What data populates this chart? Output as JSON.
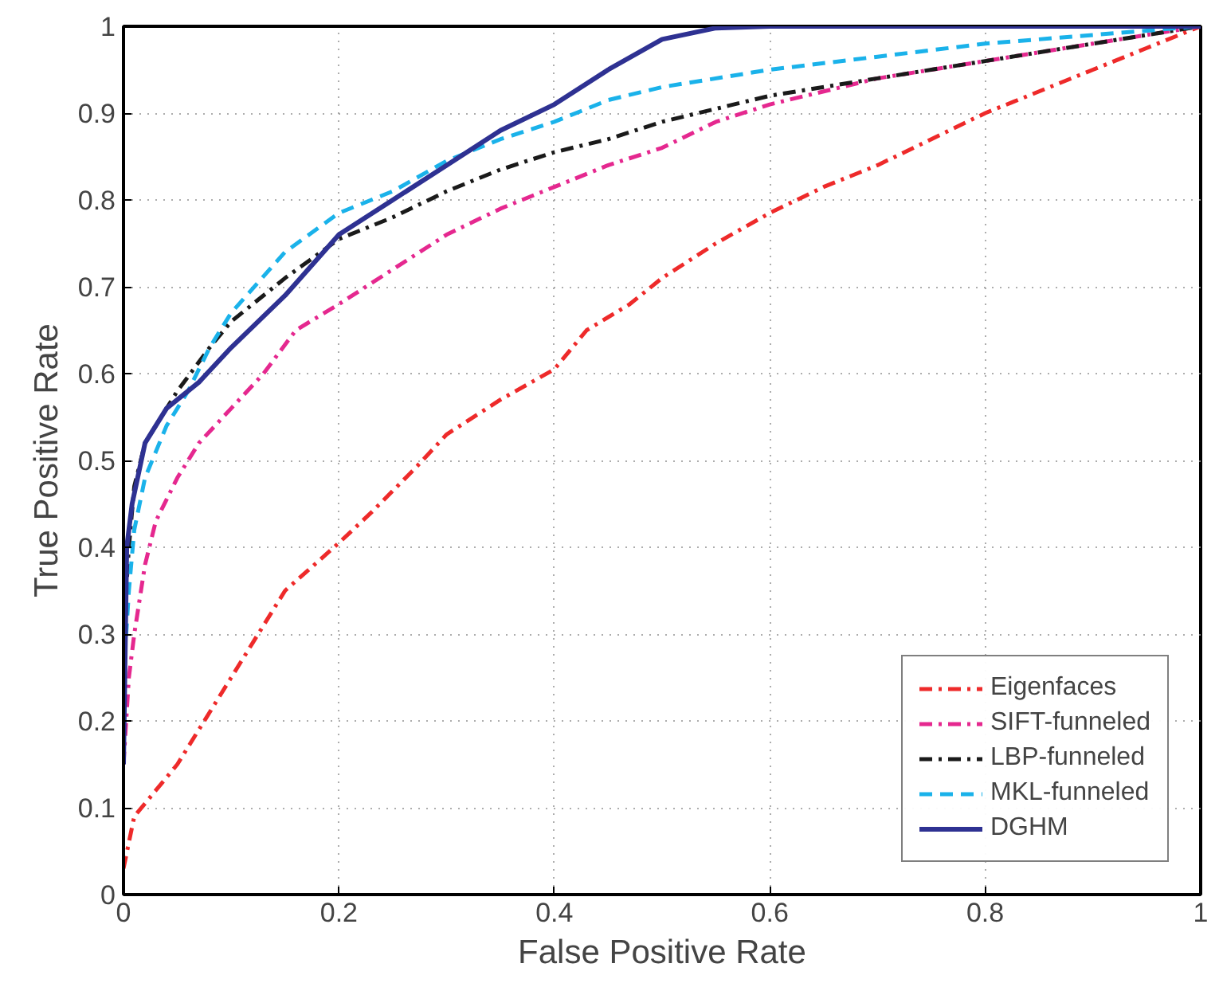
{
  "chart_data": {
    "type": "line",
    "xlabel": "False Positive Rate",
    "ylabel": "True Positive Rate",
    "xlim": [
      0,
      1
    ],
    "ylim": [
      0,
      1
    ],
    "xticks": [
      0,
      0.2,
      0.4,
      0.6,
      0.8,
      1
    ],
    "yticks": [
      0,
      0.1,
      0.2,
      0.3,
      0.4,
      0.5,
      0.6,
      0.7,
      0.8,
      0.9,
      1
    ],
    "grid": true,
    "legend": "bottom right",
    "marker": "none",
    "series": [
      {
        "name": "Eigenfaces",
        "color": "#ee2a2a",
        "line_style": "dashdot",
        "x": [
          0,
          0.005,
          0.01,
          0.03,
          0.05,
          0.07,
          0.1,
          0.12,
          0.15,
          0.2,
          0.23,
          0.27,
          0.3,
          0.35,
          0.4,
          0.43,
          0.47,
          0.5,
          0.55,
          0.6,
          0.65,
          0.7,
          0.75,
          0.8,
          0.85,
          0.9,
          0.95,
          1
        ],
        "values": [
          0.03,
          0.06,
          0.09,
          0.12,
          0.15,
          0.19,
          0.25,
          0.29,
          0.35,
          0.405,
          0.44,
          0.49,
          0.53,
          0.57,
          0.605,
          0.65,
          0.68,
          0.71,
          0.75,
          0.785,
          0.815,
          0.84,
          0.87,
          0.9,
          0.925,
          0.95,
          0.975,
          1
        ]
      },
      {
        "name": "SIFT-funneled",
        "color": "#e5288f",
        "line_style": "dashdot",
        "x": [
          0,
          0.005,
          0.01,
          0.02,
          0.03,
          0.05,
          0.07,
          0.1,
          0.13,
          0.16,
          0.2,
          0.25,
          0.3,
          0.35,
          0.4,
          0.45,
          0.5,
          0.55,
          0.6,
          0.7,
          0.8,
          0.9,
          1
        ],
        "values": [
          0.15,
          0.25,
          0.3,
          0.38,
          0.43,
          0.48,
          0.52,
          0.56,
          0.6,
          0.65,
          0.68,
          0.72,
          0.76,
          0.79,
          0.815,
          0.84,
          0.86,
          0.89,
          0.91,
          0.94,
          0.96,
          0.98,
          1
        ]
      },
      {
        "name": "LBP-funneled",
        "color": "#1a1a1a",
        "line_style": "dashdot",
        "x": [
          0,
          0.005,
          0.01,
          0.02,
          0.05,
          0.08,
          0.1,
          0.15,
          0.2,
          0.25,
          0.3,
          0.35,
          0.4,
          0.45,
          0.5,
          0.6,
          0.7,
          0.8,
          0.9,
          1
        ],
        "values": [
          0.3,
          0.4,
          0.47,
          0.52,
          0.58,
          0.63,
          0.66,
          0.71,
          0.755,
          0.78,
          0.81,
          0.835,
          0.855,
          0.87,
          0.89,
          0.92,
          0.94,
          0.96,
          0.98,
          1
        ]
      },
      {
        "name": "MKL-funneled",
        "color": "#1ab2ea",
        "line_style": "dashed",
        "x": [
          0,
          0.005,
          0.01,
          0.02,
          0.04,
          0.06,
          0.08,
          0.1,
          0.15,
          0.2,
          0.25,
          0.3,
          0.35,
          0.4,
          0.45,
          0.5,
          0.6,
          0.7,
          0.8,
          0.9,
          1
        ],
        "values": [
          0.25,
          0.35,
          0.42,
          0.48,
          0.54,
          0.58,
          0.63,
          0.67,
          0.74,
          0.785,
          0.81,
          0.845,
          0.87,
          0.89,
          0.915,
          0.93,
          0.95,
          0.965,
          0.98,
          0.99,
          1
        ]
      },
      {
        "name": "DGHM",
        "color": "#2e3192",
        "line_style": "solid",
        "x": [
          0,
          0.003,
          0.008,
          0.02,
          0.04,
          0.07,
          0.1,
          0.15,
          0.2,
          0.25,
          0.3,
          0.35,
          0.4,
          0.45,
          0.5,
          0.55,
          0.6,
          1
        ],
        "values": [
          0.15,
          0.4,
          0.45,
          0.52,
          0.56,
          0.59,
          0.63,
          0.69,
          0.76,
          0.8,
          0.84,
          0.88,
          0.91,
          0.95,
          0.985,
          0.998,
          1,
          1
        ]
      }
    ]
  }
}
